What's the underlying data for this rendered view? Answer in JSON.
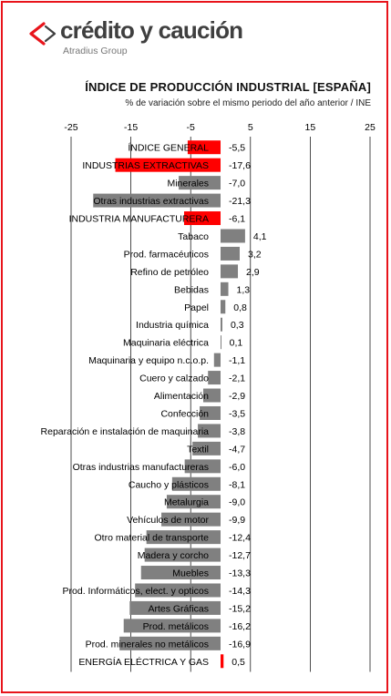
{
  "header": {
    "brand": "crédito y caución",
    "brand_sub": "Atradius Group",
    "colors": {
      "brand_mark": "#e8141b",
      "frame": "#e8141b"
    }
  },
  "chart_data": {
    "type": "bar",
    "orientation": "horizontal",
    "title": "ÍNDICE DE PRODUCCIÓN INDUSTRIAL [ESPAÑA]",
    "subtitle": "% de variación sobre el mismo periodo del año anterior / INE",
    "xlim": [
      -25,
      25
    ],
    "xticks": [
      "-25",
      "-15",
      "-5",
      "5",
      "15",
      "25"
    ],
    "axis_position": "top",
    "grid": "vertical",
    "categories": [
      "ÍNDICE GENERAL",
      "INDUSTRIAS EXTRACTIVAS",
      "Minerales",
      "Otras industrias  extractivas",
      "INDUSTRIA MANUFACTURERA",
      "Tabaco",
      "Prod. farmacéuticos",
      "Refino de petróleo",
      "Bebidas",
      "Papel",
      "Industria química",
      "Maquinaria  eléctrica",
      "Maquinaria  y equipo n.c.o.p.",
      "Cuero y calzado",
      "Alimentación",
      "Confección",
      "Reparación e instalación  de maquinaria",
      "Textil",
      "Otras industrias  manufactureras",
      "Caucho y plásticos",
      "Metalurgia",
      "Vehículos de motor",
      "Otro material de transporte",
      "Madera y corcho",
      "Muebles",
      "Prod. Informáticos, elect. y opticos",
      "Artes Gráficas",
      "Prod. metálicos",
      "Prod. minerales no metálicos",
      "ENERGÍA ELÉCTRICA  Y GAS"
    ],
    "values": [
      -5.5,
      -17.6,
      -7.0,
      -21.3,
      -6.1,
      4.1,
      3.2,
      2.9,
      1.3,
      0.8,
      0.3,
      0.1,
      -1.1,
      -2.1,
      -2.9,
      -3.5,
      -3.8,
      -4.7,
      -6.0,
      -8.1,
      -9.0,
      -9.9,
      -12.4,
      -12.7,
      -13.3,
      -14.3,
      -15.2,
      -16.2,
      -16.9,
      0.5
    ],
    "value_labels": [
      "-5,5",
      "-17,6",
      "-7,0",
      "-21,3",
      "-6,1",
      "4,1",
      "3,2",
      "2,9",
      "1,3",
      "0,8",
      "0,3",
      "0,1",
      "-1,1",
      "-2,1",
      "-2,9",
      "-3,5",
      "-3,8",
      "-4,7",
      "-6,0",
      "-8,1",
      "-9,0",
      "-9,9",
      "-12,4",
      "-12,7",
      "-13,3",
      "-14,3",
      "-15,2",
      "-16,2",
      "-16,9",
      "0,5"
    ],
    "highlighted": [
      0,
      1,
      4,
      29
    ],
    "colors": {
      "bar": "#808080",
      "highlight": "#ff0000",
      "grid": "#000000"
    }
  }
}
